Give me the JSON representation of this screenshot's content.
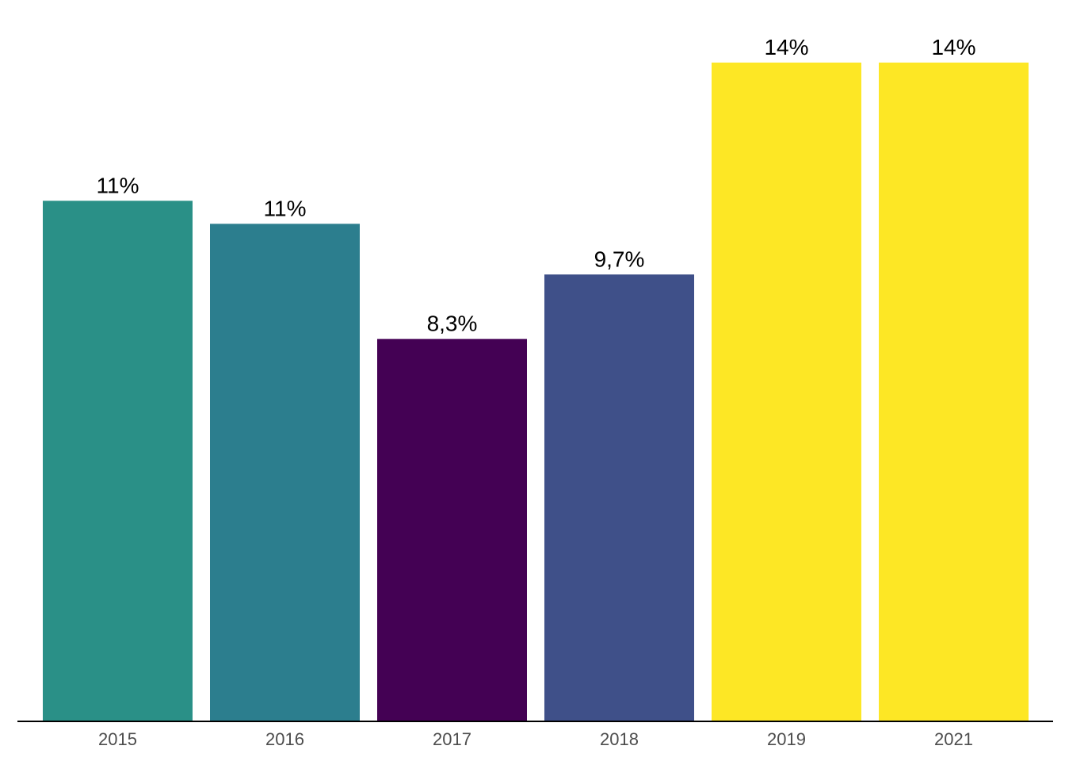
{
  "chart_data": {
    "type": "bar",
    "title": "",
    "xlabel": "",
    "ylabel": "",
    "categories": [
      "2015",
      "2016",
      "2017",
      "2018",
      "2019",
      "2021"
    ],
    "values": [
      11.3,
      10.8,
      8.3,
      9.7,
      14.3,
      14.3
    ],
    "value_labels": [
      "11%",
      "11%",
      "8,3%",
      "9,7%",
      "14%",
      "14%"
    ],
    "colors": [
      "#2A9087",
      "#2C7E8E",
      "#440154",
      "#3F5089",
      "#FDE725",
      "#FDE725"
    ],
    "ylim": [
      0,
      15
    ],
    "grid": false,
    "legend": "none"
  }
}
